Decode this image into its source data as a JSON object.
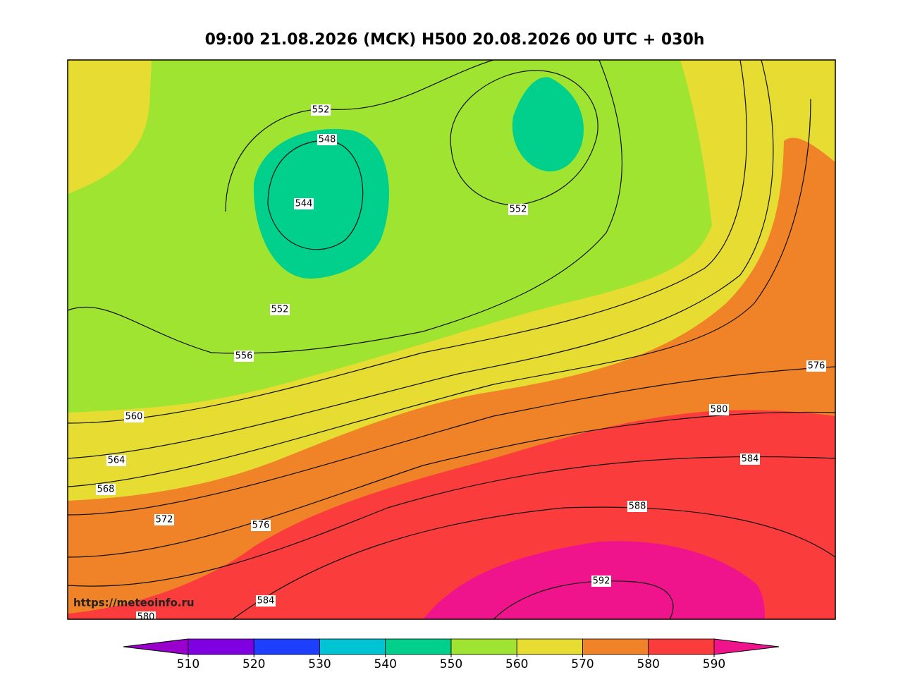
{
  "header": {
    "title": "09:00 21.08.2026 (MCK) H500  20.08.2026 00 UTC + 030h"
  },
  "map": {
    "watermark": "https://meteoinfo.ru",
    "contour_labels": [
      552,
      548,
      544,
      552,
      552,
      556,
      560,
      564,
      568,
      572,
      576,
      576,
      580,
      584,
      588,
      592,
      584,
      580
    ]
  },
  "colorbar": {
    "ticks": [
      510,
      520,
      530,
      540,
      550,
      560,
      570,
      580,
      590
    ],
    "colors": [
      "#9900cc",
      "#7f00e0",
      "#1f3fff",
      "#00c4d4",
      "#00d08c",
      "#a0e432",
      "#e6dc32",
      "#f08228",
      "#fa3c3c",
      "#f0148c"
    ]
  }
}
